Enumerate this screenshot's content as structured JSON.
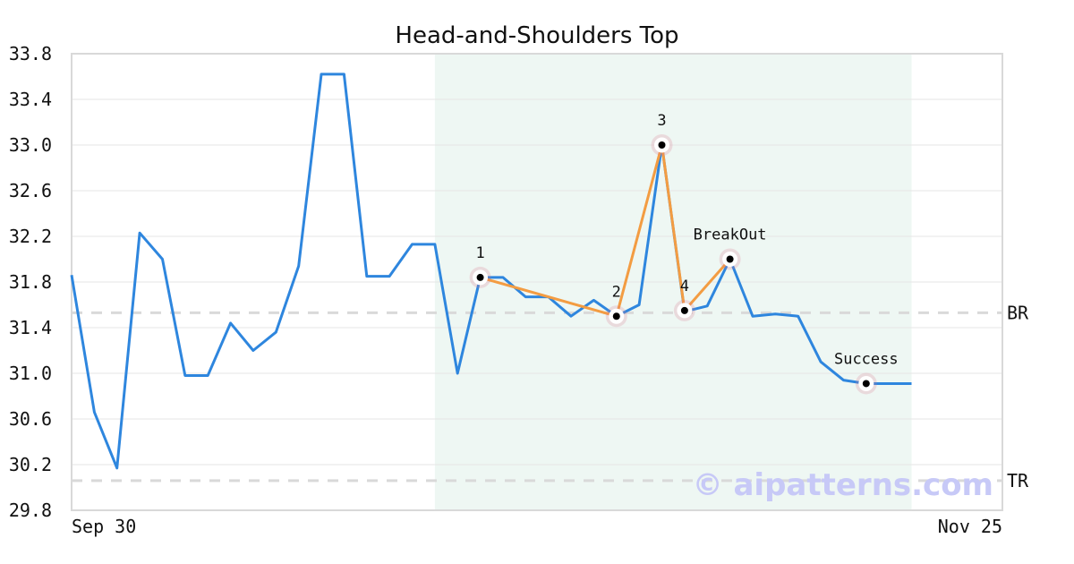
{
  "chart_data": {
    "type": "line",
    "title": "Head-and-Shoulders Top",
    "xlabel": "",
    "ylabel": "",
    "ylim": [
      29.8,
      33.8
    ],
    "y_ticks": [
      29.8,
      30.2,
      30.6,
      31.0,
      31.4,
      31.8,
      32.2,
      32.6,
      33.0,
      33.4,
      33.8
    ],
    "y_tick_labels": [
      "29.8",
      "30.2",
      "30.6",
      "31.0",
      "31.4",
      "31.8",
      "32.2",
      "32.6",
      "33.0",
      "33.4",
      "33.8"
    ],
    "x_tick_labels": [
      {
        "index": 0,
        "label": "Sep 30"
      },
      {
        "index": 41,
        "label": "Nov 25"
      }
    ],
    "grid": "horizontal",
    "series": [
      {
        "color": "#2e86de",
        "values": [
          31.86,
          30.66,
          30.17,
          32.23,
          32.0,
          30.98,
          30.98,
          31.44,
          31.2,
          31.36,
          31.94,
          33.62,
          33.62,
          31.85,
          31.85,
          32.13,
          32.13,
          31.0,
          31.84,
          31.84,
          31.67,
          31.67,
          31.5,
          31.64,
          31.5,
          31.6,
          33.0,
          31.54,
          31.59,
          32.0,
          31.5,
          31.52,
          31.5,
          31.1,
          30.94,
          30.91,
          30.91,
          30.91
        ]
      }
    ],
    "pattern_points": [
      {
        "label": "1",
        "index": 18,
        "value": 31.84,
        "connect": true
      },
      {
        "label": "2",
        "index": 24,
        "value": 31.5,
        "connect": true
      },
      {
        "label": "3",
        "index": 26,
        "value": 33.0,
        "connect": true
      },
      {
        "label": "4",
        "index": 27,
        "value": 31.55,
        "connect": true
      },
      {
        "label": "BreakOut",
        "index": 29,
        "value": 32.0,
        "connect": true
      },
      {
        "label": "Success",
        "index": 35,
        "value": 30.91,
        "connect": false
      }
    ],
    "pattern_color": "#f39c42",
    "highlight_range": [
      16,
      37
    ],
    "highlight_color": "#eef7f3",
    "reference_lines": [
      {
        "label": "BR",
        "value": 31.53
      },
      {
        "label": "TR",
        "value": 30.06
      }
    ],
    "watermark": "© aipatterns.com"
  }
}
